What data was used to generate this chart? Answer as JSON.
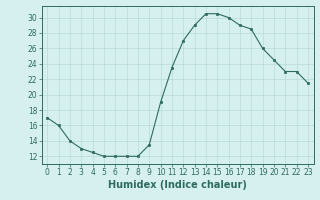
{
  "x": [
    0,
    1,
    2,
    3,
    4,
    5,
    6,
    7,
    8,
    9,
    10,
    11,
    12,
    13,
    14,
    15,
    16,
    17,
    18,
    19,
    20,
    21,
    22,
    23
  ],
  "y": [
    17,
    16,
    14,
    13,
    12.5,
    12,
    12,
    12,
    12,
    13.5,
    19,
    23.5,
    27,
    29,
    30.5,
    30.5,
    30,
    29,
    28.5,
    26,
    24.5,
    23,
    23,
    21.5
  ],
  "line_color": "#2e6b5e",
  "marker": "s",
  "marker_size": 2,
  "background_color": "#d6f0f0",
  "grid_color": "#b8dada",
  "xlabel": "Humidex (Indice chaleur)",
  "xlabel_fontsize": 7,
  "yticks": [
    12,
    14,
    16,
    18,
    20,
    22,
    24,
    26,
    28,
    30
  ],
  "ylim": [
    11,
    31.5
  ],
  "xlim": [
    -0.5,
    23.5
  ],
  "xtick_fontsize": 5.5,
  "ytick_fontsize": 5.5,
  "linewidth": 0.8
}
